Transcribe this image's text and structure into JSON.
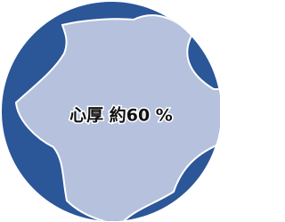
{
  "label": "心厚 約60 %"
}
